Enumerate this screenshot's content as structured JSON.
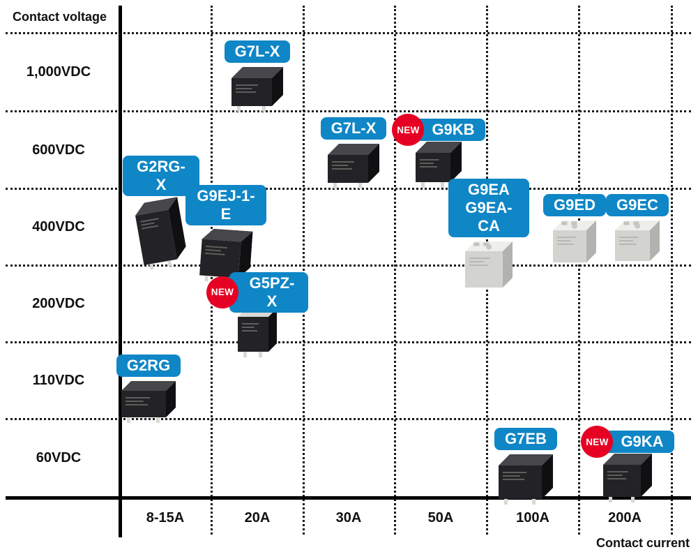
{
  "axes": {
    "y_title": "Contact voltage",
    "x_title": "Contact current",
    "y_labels": [
      "1,000VDC",
      "600VDC",
      "400VDC",
      "200VDC",
      "110VDC",
      "60VDC"
    ],
    "x_labels": [
      "8-15A",
      "20A",
      "30A",
      "50A",
      "100A",
      "200A"
    ]
  },
  "badge": {
    "new_label": "NEW"
  },
  "colors": {
    "label_bg": "#0f86c6",
    "label_text": "#ffffff",
    "new_badge_bg": "#e60023",
    "grid": "#1a1a1a",
    "axis": "#000000"
  },
  "products": [
    {
      "label": "G7L-X",
      "voltage": "1,000VDC",
      "current": "20A",
      "is_new": false
    },
    {
      "label": "G7L-X",
      "voltage": "600VDC",
      "current": "30A",
      "is_new": false
    },
    {
      "label": "G9KB",
      "voltage": "600VDC",
      "current": "50A",
      "is_new": true
    },
    {
      "label": "G2RG-X",
      "voltage": "400-600VDC",
      "current": "8-15A",
      "is_new": false
    },
    {
      "label": "G9EJ-1-E",
      "voltage": "400VDC",
      "current": "20A",
      "is_new": false
    },
    {
      "label": "G9EA\nG9EA-CA",
      "voltage": "400VDC",
      "current": "50A",
      "is_new": false
    },
    {
      "label": "G9ED",
      "voltage": "400VDC",
      "current": "100A",
      "is_new": false
    },
    {
      "label": "G9EC",
      "voltage": "400VDC",
      "current": "200A",
      "is_new": false
    },
    {
      "label": "G5PZ-X",
      "voltage": "200VDC",
      "current": "20A",
      "is_new": true
    },
    {
      "label": "G2RG",
      "voltage": "110VDC",
      "current": "8-15A",
      "is_new": false
    },
    {
      "label": "G7EB",
      "voltage": "60VDC",
      "current": "100A",
      "is_new": false
    },
    {
      "label": "G9KA",
      "voltage": "60VDC",
      "current": "200A",
      "is_new": true
    }
  ],
  "chart_data": {
    "type": "scatter",
    "title": "",
    "xlabel": "Contact current",
    "ylabel": "Contact voltage",
    "x_categories": [
      "8-15A",
      "20A",
      "30A",
      "50A",
      "100A",
      "200A"
    ],
    "y_categories": [
      "60VDC",
      "110VDC",
      "200VDC",
      "400VDC",
      "600VDC",
      "1,000VDC"
    ],
    "grid": "dotted",
    "legend": "none",
    "points": [
      {
        "label": "G7L-X",
        "x": "20A",
        "y": "1,000VDC",
        "new": false
      },
      {
        "label": "G7L-X",
        "x": "30A",
        "y": "600VDC",
        "new": false
      },
      {
        "label": "G9KB",
        "x": "50A",
        "y": "600VDC",
        "new": true
      },
      {
        "label": "G2RG-X",
        "x": "8-15A",
        "y": "400-600VDC",
        "new": false
      },
      {
        "label": "G9EJ-1-E",
        "x": "20A",
        "y": "400VDC",
        "new": false
      },
      {
        "label": "G9EA / G9EA-CA",
        "x": "50A",
        "y": "400VDC",
        "new": false
      },
      {
        "label": "G9ED",
        "x": "100A",
        "y": "400VDC",
        "new": false
      },
      {
        "label": "G9EC",
        "x": "200A",
        "y": "400VDC",
        "new": false
      },
      {
        "label": "G5PZ-X",
        "x": "20A",
        "y": "200VDC",
        "new": true
      },
      {
        "label": "G2RG",
        "x": "8-15A",
        "y": "110VDC",
        "new": false
      },
      {
        "label": "G7EB",
        "x": "100A",
        "y": "60VDC",
        "new": false
      },
      {
        "label": "G9KA",
        "x": "200A",
        "y": "60VDC",
        "new": true
      }
    ]
  }
}
